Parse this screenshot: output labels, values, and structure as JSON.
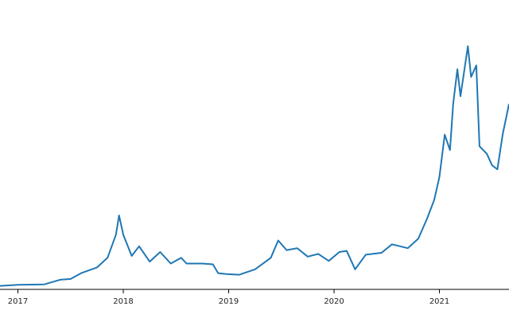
{
  "chart_data": {
    "type": "line",
    "x": [
      2016.83,
      2017.0,
      2017.25,
      2017.4,
      2017.5,
      2017.6,
      2017.75,
      2017.85,
      2017.93,
      2017.96,
      2018.0,
      2018.08,
      2018.15,
      2018.25,
      2018.35,
      2018.45,
      2018.55,
      2018.6,
      2018.75,
      2018.85,
      2018.9,
      2018.97,
      2019.1,
      2019.25,
      2019.4,
      2019.47,
      2019.55,
      2019.65,
      2019.75,
      2019.85,
      2019.95,
      2020.05,
      2020.12,
      2020.2,
      2020.3,
      2020.45,
      2020.55,
      2020.7,
      2020.8,
      2020.88,
      2020.95,
      2021.0,
      2021.05,
      2021.1,
      2021.13,
      2021.17,
      2021.2,
      2021.27,
      2021.3,
      2021.35,
      2021.38,
      2021.45,
      2021.5,
      2021.55,
      2021.6,
      2021.66
    ],
    "series": [
      {
        "color": "#1f77b4",
        "values": [
          700,
          1000,
          1100,
          2300,
          2500,
          4000,
          5500,
          8000,
          14000,
          19000,
          14000,
          8500,
          11000,
          7000,
          9500,
          6500,
          8000,
          6500,
          6500,
          6300,
          4000,
          3800,
          3600,
          5000,
          8000,
          12500,
          10000,
          10500,
          8300,
          9000,
          7200,
          9500,
          9800,
          5000,
          8800,
          9300,
          11500,
          10500,
          13000,
          18000,
          23000,
          29000,
          40000,
          36000,
          48000,
          57000,
          50000,
          63000,
          55000,
          58000,
          37000,
          35000,
          32000,
          31000,
          40000,
          48000
        ]
      }
    ],
    "xlim": [
      2016.83,
      2021.66
    ],
    "xticks": [
      2017,
      2018,
      2019,
      2020,
      2021
    ],
    "ylim": [
      0,
      75000
    ]
  }
}
